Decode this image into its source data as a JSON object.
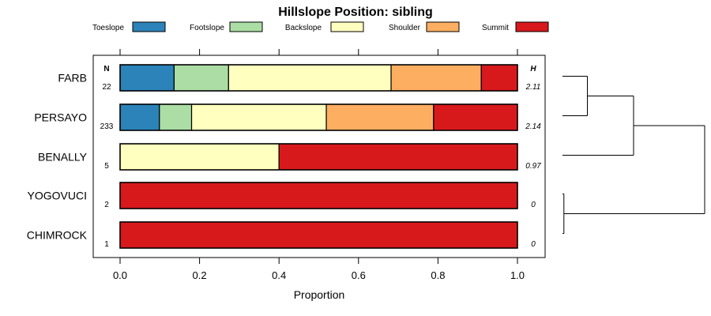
{
  "chart_data": {
    "type": "bar",
    "stacked": true,
    "orientation": "horizontal",
    "title": "Hillslope Position: sibling",
    "xlabel": "Proportion",
    "xlim": [
      0,
      1
    ],
    "xticks": [
      "0.0",
      "0.2",
      "0.4",
      "0.6",
      "0.8",
      "1.0"
    ],
    "n_header": "N",
    "h_header": "H",
    "legend": [
      {
        "name": "Toeslope",
        "color": "#2b83ba"
      },
      {
        "name": "Footslope",
        "color": "#abdda4"
      },
      {
        "name": "Backslope",
        "color": "#ffffbf"
      },
      {
        "name": "Shoulder",
        "color": "#fdae61"
      },
      {
        "name": "Summit",
        "color": "#d7191c"
      }
    ],
    "categories": [
      "FARB",
      "PERSAYO",
      "BENALLY",
      "YOGOVUCI",
      "CHIMROCK"
    ],
    "n": [
      "22",
      "233",
      "5",
      "2",
      "1"
    ],
    "h": [
      "2.11",
      "2.14",
      "0.97",
      "0",
      "0"
    ],
    "series": [
      {
        "name": "Toeslope",
        "values": [
          0.136,
          0.099,
          0,
          0,
          0
        ]
      },
      {
        "name": "Footslope",
        "values": [
          0.137,
          0.081,
          0,
          0,
          0
        ]
      },
      {
        "name": "Backslope",
        "values": [
          0.409,
          0.339,
          0.4,
          0,
          0
        ]
      },
      {
        "name": "Shoulder",
        "values": [
          0.227,
          0.27,
          0,
          0,
          0
        ]
      },
      {
        "name": "Summit",
        "values": [
          0.091,
          0.211,
          0.6,
          1,
          1
        ]
      }
    ],
    "dendrogram": {
      "merges": [
        {
          "a": "FARB",
          "b": "PERSAYO",
          "height": 0.35
        },
        {
          "a": "YOGOVUCI",
          "b": "CHIMROCK",
          "height": 0.02
        },
        {
          "a": [
            "FARB",
            "PERSAYO"
          ],
          "b": "BENALLY",
          "height": 1.0
        },
        {
          "a": [
            "FARB",
            "PERSAYO",
            "BENALLY"
          ],
          "b": [
            "YOGOVUCI",
            "CHIMROCK"
          ],
          "height": 2.0
        }
      ]
    }
  }
}
